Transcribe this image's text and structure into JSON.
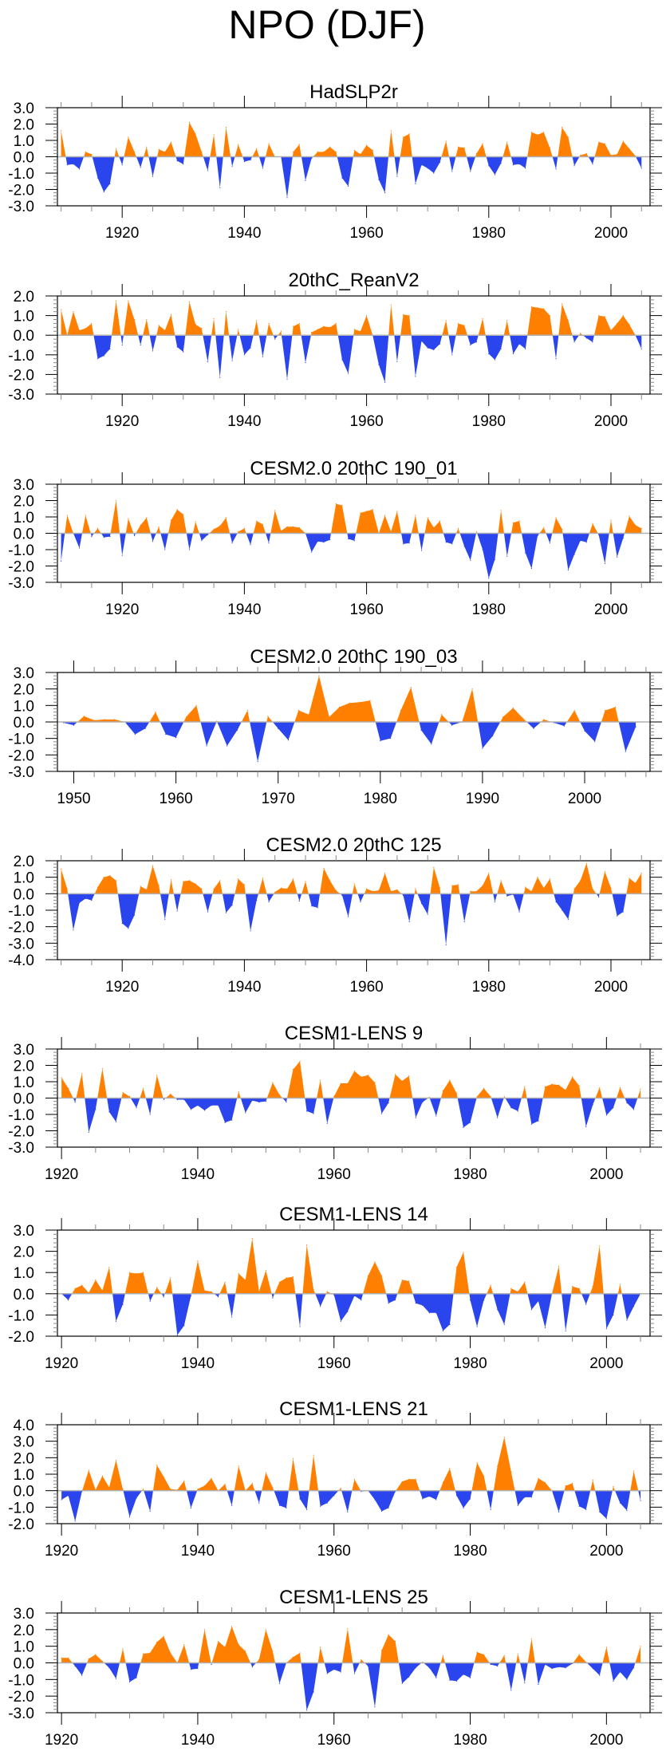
{
  "figure_title": "NPO (DJF)",
  "colors": {
    "positive": "#ff8000",
    "negative": "#2a45ee",
    "zero_line": "#b0b0b0",
    "axis": "#000000"
  },
  "chart_data": [
    {
      "type": "area",
      "title": "HadSLP2r",
      "xlabel": "",
      "ylabel": "",
      "ylim": [
        -3.0,
        3.0
      ],
      "yticks": [
        "3.0",
        "2.0",
        "1.0",
        "0.0",
        "-1.0",
        "-2.0",
        "-3.0"
      ],
      "xticks": [
        "1920",
        "1940",
        "1960",
        "1980",
        "2000"
      ],
      "x_start": 1910,
      "values": [
        1.6,
        -0.5,
        -0.45,
        -0.75,
        0.3,
        0.15,
        -1.3,
        -2.15,
        -1.65,
        0.5,
        -0.5,
        1.2,
        0.3,
        -0.65,
        0.6,
        -1.2,
        0.45,
        0.3,
        0.9,
        -0.25,
        -0.45,
        2.1,
        1.4,
        0.3,
        -0.85,
        1.35,
        -1.9,
        1.8,
        -0.6,
        0.75,
        -0.3,
        -0.2,
        0.5,
        -0.7,
        0.8,
        0.0,
        0.0,
        -2.5,
        0.3,
        0.75,
        -1.45,
        -0.1,
        0.3,
        0.3,
        0.6,
        0.3,
        -1.3,
        -1.8,
        0.4,
        0.15,
        0.7,
        0.4,
        -1.4,
        -2.2,
        1.6,
        -1.2,
        1.2,
        1.4,
        -1.65,
        -0.5,
        -0.7,
        -1.0,
        -0.35,
        0.95,
        -0.9,
        0.6,
        0.55,
        -0.9,
        0.2,
        0.8,
        -0.55,
        -1.1,
        -0.4,
        0.9,
        -0.5,
        -0.45,
        -0.7,
        1.5,
        1.35,
        1.5,
        0.55,
        -0.75,
        1.8,
        1.2,
        -0.55,
        0.1,
        0.2,
        -0.45,
        0.9,
        0.8,
        0.1,
        0.15,
        0.95,
        0.5,
        0.05,
        -0.7
      ]
    },
    {
      "type": "area",
      "title": "20thC_ReanV2",
      "xlabel": "",
      "ylabel": "",
      "ylim": [
        -3.0,
        2.0
      ],
      "yticks": [
        "2.0",
        "1.0",
        "0.0",
        "-1.0",
        "-2.0",
        "-3.0"
      ],
      "xticks": [
        "1920",
        "1940",
        "1960",
        "1980",
        "2000"
      ],
      "x_start": 1910,
      "values": [
        1.3,
        0.0,
        1.2,
        0.25,
        0.35,
        0.6,
        -1.2,
        -1.05,
        -0.7,
        1.75,
        -0.5,
        1.75,
        0.8,
        -0.5,
        0.8,
        -0.8,
        0.5,
        0.25,
        1.05,
        -0.6,
        -0.85,
        1.7,
        0.55,
        0.35,
        -1.35,
        0.85,
        -2.15,
        1.2,
        -1.3,
        0.3,
        -1.0,
        -0.65,
        0.75,
        -1.1,
        0.6,
        -0.2,
        0.2,
        -2.25,
        0.45,
        0.6,
        -1.4,
        0.15,
        0.3,
        0.45,
        0.4,
        0.6,
        -1.25,
        -1.95,
        0.3,
        0.2,
        1.0,
        0.0,
        -1.5,
        -2.4,
        1.55,
        -1.35,
        1.05,
        1.0,
        -2.1,
        -0.3,
        -0.65,
        -0.75,
        -0.45,
        0.75,
        -1.0,
        0.6,
        0.5,
        -0.5,
        -0.35,
        0.85,
        -0.95,
        -1.25,
        -0.7,
        0.75,
        -0.95,
        -0.45,
        -0.7,
        1.45,
        1.4,
        1.35,
        1.0,
        -1.2,
        1.6,
        0.75,
        -0.35,
        0.1,
        -0.15,
        -0.35,
        1.0,
        0.95,
        0.25,
        0.6,
        1.0,
        0.55,
        0.0,
        -0.7
      ]
    },
    {
      "type": "area",
      "title": "CESM2.0 20thC 190_01",
      "xlabel": "",
      "ylabel": "",
      "ylim": [
        -3.0,
        3.0
      ],
      "yticks": [
        "3.0",
        "2.0",
        "1.0",
        "0.0",
        "-1.0",
        "-2.0",
        "-3.0"
      ],
      "xticks": [
        "1920",
        "1940",
        "1960",
        "1980",
        "2000"
      ],
      "x_start": 1910,
      "values": [
        -1.7,
        1.1,
        0.0,
        -0.9,
        1.1,
        -0.2,
        0.3,
        -0.25,
        -0.2,
        2.0,
        -1.35,
        0.9,
        -0.15,
        0.5,
        0.95,
        -0.5,
        0.4,
        -1.0,
        0.8,
        1.45,
        1.15,
        -1.0,
        0.7,
        -0.45,
        -0.1,
        0.25,
        0.45,
        0.95,
        -0.6,
        0.1,
        0.3,
        -0.7,
        0.75,
        0.55,
        -0.6,
        1.4,
        0.15,
        0.4,
        0.4,
        0.35,
        0.0,
        -1.15,
        -0.5,
        -0.55,
        -0.4,
        1.8,
        1.7,
        -0.35,
        -0.45,
        1.25,
        1.35,
        1.45,
        0.0,
        1.1,
        0.1,
        1.35,
        -0.65,
        -0.6,
        1.1,
        -1.05,
        0.95,
        0.35,
        0.75,
        -0.55,
        -0.65,
        0.3,
        -0.8,
        -1.65,
        0.1,
        -1.0,
        -2.75,
        -1.6,
        1.4,
        -1.4,
        0.65,
        0.75,
        -1.2,
        -2.15,
        -0.15,
        0.35,
        -0.6,
        0.95,
        0.25,
        -2.25,
        -1.3,
        -0.45,
        -0.55,
        0.6,
        -0.1,
        -1.85,
        0.8,
        -1.45,
        -0.3,
        1.05,
        0.5,
        0.3
      ]
    },
    {
      "type": "area",
      "title": "CESM2.0 20thC 190_03",
      "xlabel": "",
      "ylabel": "",
      "ylim": [
        -3.0,
        3.0
      ],
      "yticks": [
        "3.0",
        "2.0",
        "1.0",
        "0.0",
        "-1.0",
        "-2.0",
        "-3.0"
      ],
      "xticks": [
        "1950",
        "1960",
        "1970",
        "1980",
        "1990",
        "2000"
      ],
      "x_start": 1949,
      "values": [
        -0.05,
        -0.2,
        0.35,
        0.1,
        0.15,
        0.15,
        0.0,
        -0.75,
        -0.4,
        0.6,
        -0.75,
        -0.95,
        0.3,
        1.0,
        -1.45,
        0.05,
        -1.45,
        -0.5,
        0.7,
        -2.4,
        0.35,
        -0.4,
        -1.1,
        0.7,
        0.45,
        2.8,
        0.3,
        0.9,
        1.15,
        1.2,
        1.3,
        -1.15,
        -1.0,
        0.7,
        2.1,
        -0.5,
        -1.35,
        0.45,
        -0.2,
        0.0,
        2.0,
        -1.6,
        -0.85,
        0.3,
        0.85,
        0.2,
        -0.4,
        0.15,
        -0.05,
        -0.25,
        0.7,
        -0.55,
        -1.2,
        0.7,
        0.9,
        -1.8,
        -0.3
      ]
    },
    {
      "type": "area",
      "title": "CESM2.0 20thC 125",
      "xlabel": "",
      "ylabel": "",
      "ylim": [
        -4.0,
        2.0
      ],
      "yticks": [
        "2.0",
        "1.0",
        "0.0",
        "-1.0",
        "-2.0",
        "-3.0",
        "-4.0"
      ],
      "xticks": [
        "1920",
        "1940",
        "1960",
        "1980",
        "2000"
      ],
      "x_start": 1910,
      "values": [
        1.5,
        0.3,
        -2.2,
        -0.55,
        -0.3,
        -0.4,
        0.4,
        1.0,
        1.1,
        0.8,
        -1.8,
        -2.1,
        -1.3,
        0.45,
        0.25,
        1.7,
        0.5,
        -1.55,
        0.85,
        -1.05,
        0.75,
        0.8,
        0.6,
        0.3,
        -1.1,
        0.3,
        0.8,
        -1.15,
        -0.7,
        0.9,
        0.55,
        -2.25,
        -0.4,
        0.95,
        -0.5,
        0.1,
        0.35,
        0.3,
        0.9,
        -0.45,
        0.75,
        -0.75,
        -0.85,
        1.55,
        0.8,
        0.2,
        -0.1,
        -1.4,
        0.6,
        -0.5,
        0.3,
        0.15,
        0.2,
        1.25,
        0.15,
        0.25,
        -0.1,
        -1.7,
        0.3,
        -0.6,
        -1.25,
        1.6,
        0.35,
        -3.1,
        0.5,
        0.55,
        -1.7,
        0.15,
        0.15,
        0.5,
        1.25,
        -0.5,
        0.8,
        -0.15,
        -0.05,
        -1.1,
        0.4,
        0.15,
        1.0,
        0.35,
        0.9,
        -0.5,
        -1.0,
        -1.55,
        0.3,
        0.8,
        1.85,
        0.3,
        -0.2,
        1.35,
        0.35,
        -1.35,
        -1.1,
        0.95,
        0.65,
        1.25
      ]
    },
    {
      "type": "area",
      "title": "CESM1-LENS 9",
      "xlabel": "",
      "ylabel": "",
      "ylim": [
        -3.0,
        3.0
      ],
      "yticks": [
        "3.0",
        "2.0",
        "1.0",
        "0.0",
        "-1.0",
        "-2.0",
        "-3.0"
      ],
      "xticks": [
        "1920",
        "1940",
        "1960",
        "1980",
        "2000"
      ],
      "x_start": 1920,
      "values": [
        1.25,
        0.6,
        -0.25,
        1.5,
        -2.1,
        -0.7,
        1.8,
        -0.85,
        -1.45,
        0.35,
        0.1,
        -0.6,
        0.6,
        -1.0,
        1.4,
        -0.1,
        0.25,
        -0.1,
        -0.1,
        -0.7,
        -0.45,
        -0.75,
        -0.45,
        -0.45,
        -1.5,
        -1.35,
        0.4,
        -0.9,
        -0.15,
        -0.25,
        -0.2,
        0.95,
        0.2,
        -0.25,
        1.75,
        2.25,
        -0.8,
        -0.95,
        1.1,
        -1.55,
        0.1,
        0.9,
        0.9,
        1.65,
        1.3,
        1.4,
        0.95,
        -0.95,
        -0.3,
        1.45,
        1.05,
        1.35,
        -1.2,
        -0.25,
        0.05,
        -1.1,
        0.45,
        1.1,
        0.3,
        -1.8,
        -1.5,
        0.1,
        0.6,
        0.1,
        -1.2,
        0.1,
        -0.6,
        -0.8,
        0.7,
        -1.6,
        -1.4,
        0.7,
        0.85,
        0.8,
        0.5,
        1.3,
        0.75,
        -1.75,
        -0.4,
        0.65,
        -1.05,
        -0.6,
        0.65,
        -0.3,
        -0.7,
        0.55
      ]
    },
    {
      "type": "area",
      "title": "CESM1-LENS 14",
      "xlabel": "",
      "ylabel": "",
      "ylim": [
        -2.0,
        3.0
      ],
      "yticks": [
        "3.0",
        "2.0",
        "1.0",
        "0.0",
        "-1.0",
        "-2.0"
      ],
      "xticks": [
        "1920",
        "1940",
        "1960",
        "1980",
        "2000"
      ],
      "x_start": 1920,
      "values": [
        0.0,
        -0.3,
        0.25,
        0.4,
        0.05,
        0.65,
        0.15,
        1.25,
        -1.3,
        -0.5,
        1.0,
        0.95,
        1.0,
        -0.35,
        0.3,
        -0.15,
        0.75,
        -1.95,
        -1.5,
        -0.1,
        1.55,
        0.15,
        0.1,
        -0.15,
        0.55,
        -1.1,
        0.95,
        0.65,
        2.6,
        0.1,
        1.1,
        -0.2,
        0.55,
        0.75,
        0.8,
        -1.55,
        2.3,
        0.2,
        -0.6,
        0.1,
        -0.05,
        -1.3,
        -0.85,
        -0.1,
        -0.3,
        0.85,
        1.5,
        0.85,
        -0.45,
        -0.3,
        0.65,
        0.6,
        -0.45,
        -0.55,
        -0.9,
        -0.9,
        -1.75,
        -1.45,
        1.25,
        1.95,
        -0.3,
        -1.55,
        -0.3,
        0.4,
        -0.75,
        -1.45,
        0.25,
        0.1,
        0.55,
        -0.75,
        -0.35,
        -1.6,
        0.0,
        1.3,
        -1.75,
        0.35,
        0.25,
        -0.5,
        0.35,
        2.25,
        -1.65,
        -1.0,
        0.45,
        -1.25,
        -0.6,
        0.0
      ]
    },
    {
      "type": "area",
      "title": "CESM1-LENS 21",
      "xlabel": "",
      "ylabel": "",
      "ylim": [
        -2.0,
        4.0
      ],
      "yticks": [
        "4.0",
        "3.0",
        "2.0",
        "1.0",
        "0.0",
        "-1.0",
        "-2.0"
      ],
      "xticks": [
        "1920",
        "1940",
        "1960",
        "1980",
        "2000"
      ],
      "x_start": 1920,
      "values": [
        -0.55,
        -0.3,
        -1.85,
        -0.05,
        1.25,
        0.05,
        0.9,
        0.2,
        1.85,
        0.1,
        -1.6,
        -0.45,
        0.1,
        -1.25,
        1.55,
        0.85,
        0.1,
        0.05,
        0.6,
        -1.05,
        0.1,
        0.3,
        0.75,
        0.0,
        0.4,
        -0.9,
        1.5,
        0.0,
        0.45,
        -0.75,
        1.1,
        0.2,
        -0.9,
        -1.05,
        1.95,
        -0.5,
        -1.15,
        2.15,
        -0.95,
        -0.75,
        -0.3,
        0.15,
        -1.3,
        0.7,
        -0.05,
        0.0,
        -0.55,
        -1.25,
        -1.05,
        -0.05,
        0.55,
        0.7,
        0.7,
        -0.5,
        -0.35,
        -0.55,
        0.5,
        1.35,
        -0.3,
        -1.05,
        -0.5,
        1.7,
        0.9,
        -1.15,
        1.5,
        3.25,
        1.15,
        -0.9,
        -0.4,
        -0.4,
        0.75,
        0.5,
        0.0,
        -1.3,
        0.3,
        0.45,
        -0.95,
        -1.15,
        0.65,
        -1.3,
        -1.7,
        0.25,
        -0.75,
        -1.2,
        1.2,
        -0.6
      ]
    },
    {
      "type": "area",
      "title": "CESM1-LENS 25",
      "xlabel": "",
      "ylabel": "",
      "ylim": [
        -3.0,
        3.0
      ],
      "yticks": [
        "3.0",
        "2.0",
        "1.0",
        "0.0",
        "-1.0",
        "-2.0",
        "-3.0"
      ],
      "xticks": [
        "1920",
        "1940",
        "1960",
        "1980",
        "2000"
      ],
      "x_start": 1920,
      "values": [
        0.3,
        0.3,
        -0.2,
        -0.75,
        0.25,
        0.5,
        0.1,
        -0.3,
        -0.95,
        0.85,
        -1.15,
        -0.9,
        0.55,
        0.6,
        1.25,
        1.6,
        0.6,
        0.0,
        1.1,
        -0.4,
        -0.35,
        2.0,
        -0.1,
        1.3,
        0.95,
        2.2,
        1.1,
        0.7,
        -0.25,
        0.2,
        2.0,
        0.7,
        -1.25,
        0.0,
        0.35,
        0.6,
        -2.85,
        -1.75,
        0.95,
        -0.65,
        -0.4,
        -0.55,
        2.05,
        -0.65,
        0.2,
        -0.2,
        -2.65,
        0.75,
        1.7,
        1.3,
        -1.25,
        -0.85,
        -0.3,
        0.05,
        -0.3,
        -0.9,
        0.45,
        -1.05,
        -1.1,
        -0.7,
        -0.9,
        0.65,
        0.5,
        -0.1,
        -0.2,
        0.45,
        -1.65,
        0.55,
        -1.2,
        1.45,
        -1.3,
        -0.1,
        -0.35,
        -0.25,
        -0.3,
        -0.05,
        0.5,
        0.05,
        -0.35,
        -0.75,
        0.95,
        -1.1,
        -0.55,
        -1.0,
        -0.3,
        1.0
      ]
    }
  ]
}
